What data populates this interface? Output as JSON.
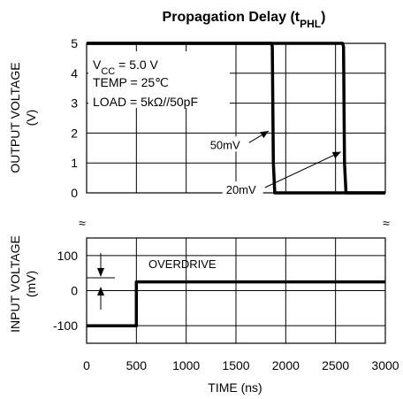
{
  "chart_data": {
    "type": "line",
    "title": "Propagation Delay (tPHL)",
    "title_main": "Propagation Delay (t",
    "title_sub": "PHL",
    "title_close": ")",
    "xlabel": "TIME (ns)",
    "xlim": [
      0,
      3000
    ],
    "x_ticks": [
      "0",
      "500",
      "1000",
      "1500",
      "2000",
      "2500",
      "3000"
    ],
    "grid": true,
    "top_panel": {
      "ylabel_line1": "OUTPUT VOLTAGE",
      "ylabel_line2": "(V)",
      "ylim": [
        0,
        5
      ],
      "y_ticks": [
        "0",
        "1",
        "2",
        "3",
        "4",
        "5"
      ],
      "series": [
        {
          "name": "50mV",
          "x": [
            0,
            1855,
            1865,
            1875,
            1890,
            2000,
            3000
          ],
          "y": [
            5,
            5,
            4.9,
            1.0,
            0,
            0,
            0
          ]
        },
        {
          "name": "20mV",
          "x": [
            0,
            2570,
            2580,
            2590,
            2605,
            2700,
            3000
          ],
          "y": [
            5,
            5,
            4.9,
            1.0,
            0,
            0,
            0
          ]
        }
      ],
      "annotations": [
        {
          "text": "50mV",
          "x": 1240,
          "y": 1.5,
          "target_x": 1855,
          "target_y": 2.1
        },
        {
          "text": "20mV",
          "x": 1400,
          "y": 0,
          "target_x": 2580,
          "target_y": 1.4
        }
      ],
      "conditions": {
        "vcc_main": "V",
        "vcc_sub": "CC",
        "vcc_rest": " = 5.0 V",
        "temp": "TEMP = 25℃",
        "load": "LOAD = 5kΩ//50pF"
      }
    },
    "bottom_panel": {
      "ylabel_line1": "INPUT VOLTAGE",
      "ylabel_line2": "(mV)",
      "ylim": [
        -150,
        150
      ],
      "y_ticks": [
        "100",
        "0",
        "-100"
      ],
      "series": [
        {
          "name": "Input",
          "x": [
            0,
            500,
            500,
            3000
          ],
          "y": [
            -100,
            -100,
            25,
            25
          ]
        }
      ],
      "annotation": "OVERDRIVE"
    },
    "break_symbol": "≈"
  }
}
